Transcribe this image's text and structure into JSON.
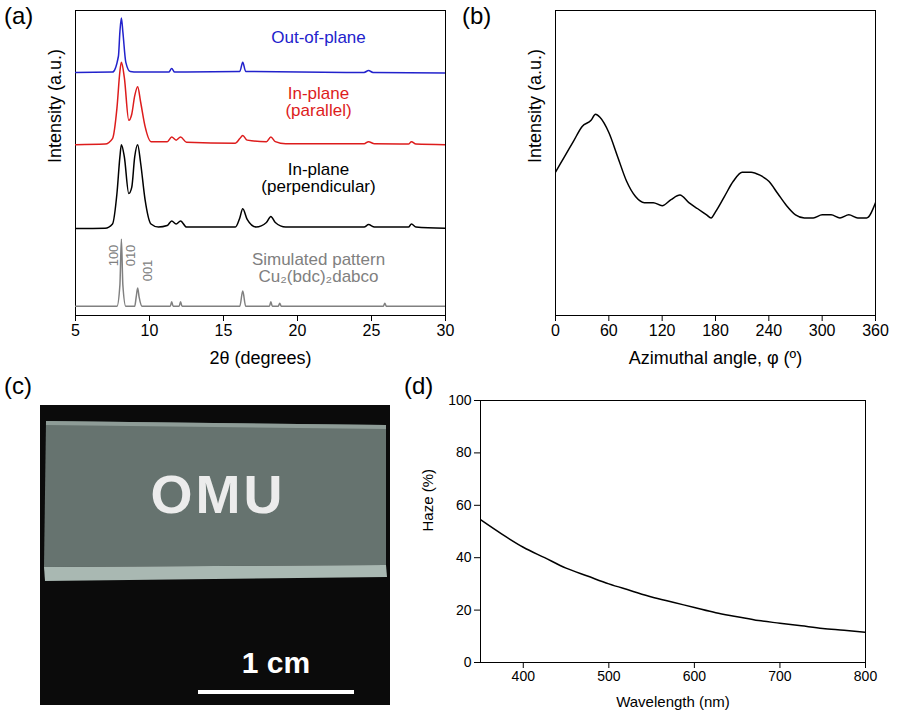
{
  "chart_data": [
    {
      "panel": "(a)",
      "type": "line",
      "xlabel": "2θ (degrees)",
      "ylabel": "Intensity (a.u.)",
      "xlim": [
        5,
        30
      ],
      "xticks": [
        5,
        10,
        15,
        20,
        25,
        30
      ],
      "ylim": [
        0,
        100
      ],
      "yticks": [],
      "tick_labels": "x",
      "series": [
        {
          "name": "Out-of-plane",
          "color": "#2222cc",
          "x": [
            5,
            7.5,
            7.9,
            8.0,
            8.1,
            8.2,
            8.4,
            8.7,
            9.2,
            11.3,
            11.5,
            11.7,
            16.1,
            16.3,
            16.5,
            24.5,
            24.8,
            25.1,
            30
          ],
          "values": [
            79.7,
            79.8,
            85,
            93,
            97.5,
            93,
            83,
            80,
            79.8,
            79.8,
            81,
            79.8,
            80,
            83,
            80,
            79.7,
            80.3,
            79.7,
            79.5
          ]
        },
        {
          "name": "In-plane\n(parallel)",
          "color": "#dd1c1c",
          "x": [
            5,
            7.0,
            7.5,
            7.8,
            8.0,
            8.1,
            8.3,
            8.6,
            8.8,
            9.0,
            9.2,
            9.4,
            9.7,
            10.1,
            11.2,
            11.5,
            11.8,
            12.1,
            12.5,
            15.8,
            16.1,
            16.3,
            16.6,
            17.9,
            18.2,
            18.5,
            19.2,
            24.5,
            24.8,
            25.2,
            27.5,
            27.7,
            28,
            30
          ],
          "values": [
            56,
            56.2,
            58,
            68,
            80,
            83,
            78,
            64,
            66,
            72,
            75,
            70,
            62,
            57,
            57,
            58.5,
            57.5,
            58.5,
            56.8,
            56.5,
            58,
            59,
            57.5,
            57,
            58.5,
            57,
            56.3,
            56.3,
            57,
            56.3,
            56.2,
            57,
            56.2,
            56
          ]
        },
        {
          "name": "In-plane\n(perpendicular)",
          "color": "#000000",
          "x": [
            5,
            7.0,
            7.5,
            7.8,
            8.0,
            8.1,
            8.3,
            8.6,
            8.8,
            9.0,
            9.2,
            9.4,
            9.7,
            10.1,
            10.6,
            11.2,
            11.5,
            11.8,
            12.1,
            12.5,
            15.8,
            16.1,
            16.3,
            16.6,
            17.2,
            17.9,
            18.2,
            18.5,
            19.2,
            24.5,
            24.8,
            25.2,
            27.5,
            27.7,
            28,
            30
          ],
          "values": [
            28.5,
            28.6,
            30,
            40,
            52,
            56,
            52,
            40,
            42,
            52,
            56,
            50,
            38,
            30,
            29,
            29.5,
            31,
            30,
            31,
            29,
            29,
            32,
            35,
            31.5,
            29,
            30.5,
            32.5,
            30.5,
            29,
            29,
            29.8,
            29,
            29,
            30,
            29,
            28.6
          ]
        },
        {
          "name": "Simulated pattern\nCu₂(bdc)₂dabco",
          "color": "#808080",
          "x": [
            5,
            7.8,
            8.0,
            8.1,
            8.2,
            8.4,
            9.0,
            9.1,
            9.2,
            9.3,
            9.5,
            11.4,
            11.5,
            11.6,
            12.0,
            12.1,
            12.2,
            16.1,
            16.3,
            16.5,
            18.1,
            18.2,
            18.3,
            18.7,
            18.8,
            18.9,
            25.8,
            25.9,
            26.0,
            30
          ],
          "values": [
            3,
            3,
            10,
            25,
            10,
            3,
            3,
            6,
            9,
            6,
            3,
            3,
            4.5,
            3,
            3,
            4.5,
            3,
            3,
            8,
            3,
            3,
            4.5,
            3,
            3,
            4,
            3,
            3,
            4,
            3,
            3
          ]
        }
      ],
      "annotations": [
        {
          "text": "100"
        },
        {
          "text": "010"
        },
        {
          "text": "001"
        }
      ]
    },
    {
      "panel": "(b)",
      "type": "line",
      "xlabel": "Azimuthal angle, φ (º)",
      "ylabel": "Intensity (a.u.)",
      "xlim": [
        0,
        360
      ],
      "xticks": [
        0,
        60,
        120,
        180,
        240,
        300,
        360
      ],
      "ylim": [
        0,
        100
      ],
      "yticks": [],
      "tick_labels": "x",
      "color": "#000000",
      "x": [
        0,
        10,
        20,
        30,
        40,
        45,
        50,
        60,
        70,
        80,
        90,
        100,
        110,
        120,
        130,
        140,
        150,
        160,
        170,
        175,
        180,
        190,
        200,
        210,
        220,
        230,
        240,
        250,
        260,
        270,
        280,
        290,
        300,
        310,
        320,
        330,
        340,
        350,
        360
      ],
      "values": [
        47,
        52,
        57,
        62,
        64,
        66,
        65,
        60,
        52,
        44,
        39,
        37,
        37,
        36,
        38,
        39.5,
        37,
        35,
        33,
        32,
        34,
        39,
        44,
        47,
        47,
        46,
        44,
        40,
        36,
        33,
        32,
        32,
        33,
        33,
        32,
        33,
        32,
        32,
        37
      ]
    },
    {
      "panel": "(d)",
      "type": "line",
      "xlabel": "Wavelength (nm)",
      "ylabel": "Haze (%)",
      "xlim": [
        350,
        800
      ],
      "xticks": [
        400,
        500,
        600,
        700,
        800
      ],
      "ylim": [
        0,
        100
      ],
      "yticks": [
        0,
        20,
        40,
        60,
        80,
        100
      ],
      "color": "#000000",
      "x": [
        350,
        375,
        400,
        425,
        450,
        475,
        500,
        525,
        550,
        575,
        600,
        625,
        650,
        675,
        700,
        725,
        750,
        775,
        800
      ],
      "values": [
        54.5,
        49,
        44,
        40,
        36,
        33,
        30,
        27.5,
        25,
        23,
        21,
        19,
        17.5,
        16,
        15,
        14,
        13,
        12.3,
        11.5
      ]
    }
  ],
  "photo": {
    "panel": "(c)",
    "text": "OMU",
    "scale_bar": "1 cm"
  }
}
